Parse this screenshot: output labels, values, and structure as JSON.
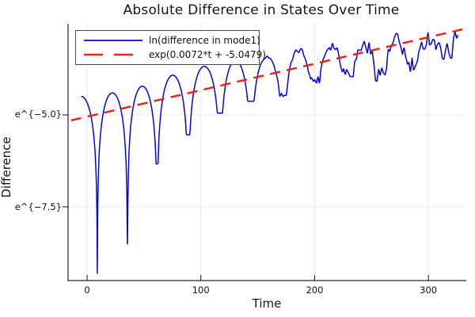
{
  "title": "Absolute Difference in States Over Time",
  "chart_data": {
    "type": "line",
    "title": "Absolute Difference in States Over Time",
    "xlabel": "Time",
    "ylabel": "Difference",
    "xlim": [
      -16.7,
      332.6
    ],
    "ylim": [
      -9.504,
      -2.522
    ],
    "grid": true,
    "legend_position": "top-left",
    "background": "#ffffff",
    "grid_color": "#e9e9e9",
    "axis_color": "#262626",
    "x_ticks": [
      {
        "t": 0,
        "label": "0"
      },
      {
        "t": 100,
        "label": "100"
      },
      {
        "t": 200,
        "label": "200"
      },
      {
        "t": 300,
        "label": "300"
      }
    ],
    "y_ticks": [
      {
        "v": -5.0,
        "label": "e^{−5.0}"
      },
      {
        "v": -7.5,
        "label": "e^{−7.5}"
      }
    ],
    "series": [
      {
        "name": "ln(difference in mode1)",
        "color": "#0505dc",
        "style": "solid",
        "line_width": 1.5,
        "model": {
          "kind": "log_abs_oscillation",
          "t_start": -5,
          "t_end": 326,
          "period_avg": 27.9,
          "cusps": [
            9,
            35.5,
            61.6,
            89,
            117,
            144,
            172.5,
            200.5,
            229.5,
            258,
            286.5,
            315,
            343
          ],
          "segment_peaks": [
            -4.5,
            -4.4,
            -4.22,
            -3.92,
            -3.68,
            -3.52,
            -3.42,
            -3.25,
            -3.1,
            -3.1,
            -3.02,
            -2.88,
            -2.72
          ],
          "cusp_minima": [
            -9.31,
            -8.51,
            -6.33,
            -5.54,
            -4.95,
            -4.63,
            -4.45,
            -4.05,
            -3.81,
            -3.85,
            -3.7,
            -3.25,
            -3.2
          ],
          "noise": {
            "onset_t": 145,
            "ramp_per_t": 0.0022,
            "max_amp": 0.28,
            "knot_dt": 1.4
          }
        }
      },
      {
        "name": "exp(0.0072*t + -5.0479)",
        "color": "#ea2419",
        "style": "dashed",
        "line_width": 2.5,
        "dash": [
          13,
          8.5
        ],
        "model": {
          "kind": "linear_in_log",
          "slope": 0.0072,
          "intercept": -5.0479,
          "t_start": -14,
          "t_end": 331
        }
      }
    ]
  }
}
